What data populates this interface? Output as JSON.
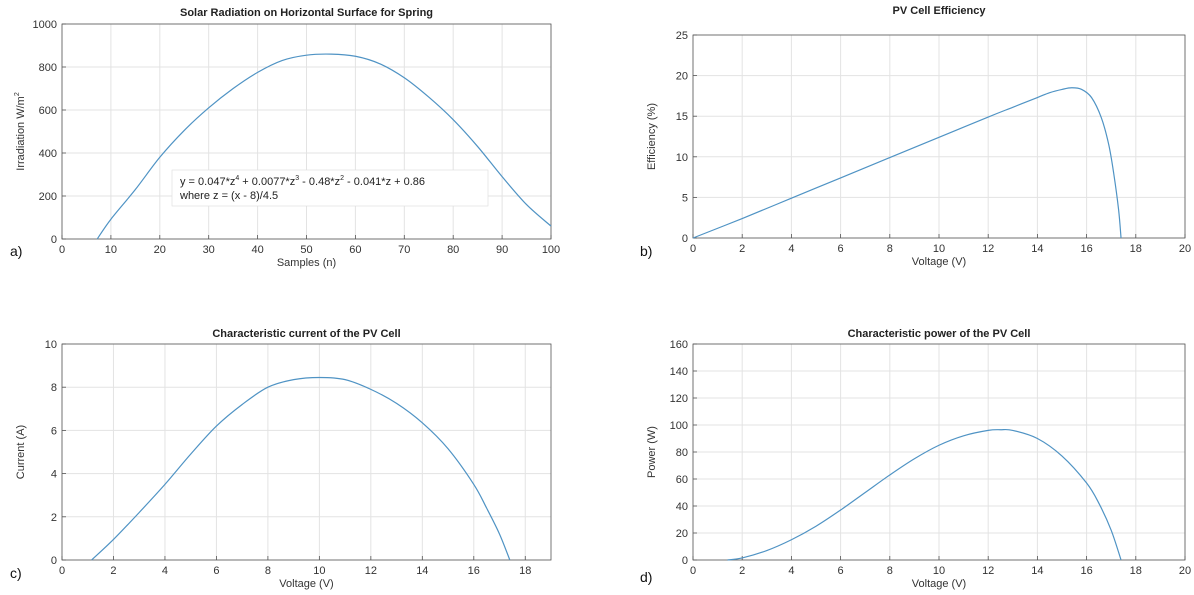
{
  "chart_data": [
    {
      "type": "line",
      "panel_label": "a)",
      "title": "Solar Radiation on Horizontal Surface for Spring",
      "xlabel": "Samples (n)",
      "ylabel": "Irradiation W/m",
      "ylabel_sup": "2",
      "xlim": [
        0,
        100
      ],
      "ylim": [
        0,
        1000
      ],
      "xticks": [
        0,
        10,
        20,
        30,
        40,
        50,
        60,
        70,
        80,
        90,
        100
      ],
      "yticks": [
        0,
        200,
        400,
        600,
        800,
        1000
      ],
      "grid": true,
      "color": "#4f93c4",
      "x": [
        7.2,
        10,
        15,
        20,
        25,
        30,
        35,
        40,
        45,
        50,
        55,
        60,
        65,
        70,
        75,
        80,
        85,
        90,
        95,
        100
      ],
      "y": [
        0,
        92,
        230,
        380,
        505,
        610,
        700,
        775,
        830,
        855,
        860,
        850,
        815,
        750,
        660,
        555,
        430,
        290,
        160,
        60
      ],
      "annotation": {
        "line1_parts": [
          "y = 0.047*z",
          "4",
          " + 0.0077*z",
          "3",
          " - 0.48*z",
          "2",
          " - 0.041*z + 0.86"
        ],
        "line2": "where z = (x - 8)/4.5"
      }
    },
    {
      "type": "line",
      "panel_label": "b)",
      "title": "PV Cell Efficiency",
      "xlabel": "Voltage (V)",
      "ylabel": "Efficiency (%)",
      "xlim": [
        0,
        20
      ],
      "ylim": [
        0,
        25
      ],
      "xticks": [
        0,
        2,
        4,
        6,
        8,
        10,
        12,
        14,
        16,
        18,
        20
      ],
      "yticks": [
        0,
        5,
        10,
        15,
        20,
        25
      ],
      "grid": true,
      "color": "#4f93c4",
      "x": [
        0,
        2,
        4,
        6,
        8,
        10,
        12,
        13,
        14,
        14.5,
        15,
        15.4,
        15.8,
        16.2,
        16.6,
        16.9,
        17.1,
        17.3,
        17.4
      ],
      "y": [
        0,
        2.4,
        4.9,
        7.4,
        9.9,
        12.4,
        14.9,
        16.1,
        17.3,
        17.9,
        18.3,
        18.5,
        18.3,
        17.3,
        14.8,
        11.5,
        8,
        3.5,
        0
      ]
    },
    {
      "type": "line",
      "panel_label": "c)",
      "title": "Characteristic current of the PV Cell",
      "xlabel": "Voltage (V)",
      "ylabel": "Current (A)",
      "xlim": [
        0,
        19
      ],
      "ylim": [
        0,
        10
      ],
      "xticks": [
        0,
        2,
        4,
        6,
        8,
        10,
        12,
        14,
        16,
        18
      ],
      "yticks": [
        0,
        2,
        4,
        6,
        8,
        10
      ],
      "grid": true,
      "color": "#4f93c4",
      "x": [
        1.15,
        2,
        3,
        4,
        5,
        6,
        7,
        8,
        9,
        10,
        11,
        12,
        13,
        14,
        15,
        16,
        16.5,
        17,
        17.4
      ],
      "y": [
        0,
        0.95,
        2.2,
        3.5,
        4.9,
        6.2,
        7.2,
        8,
        8.35,
        8.45,
        8.35,
        7.9,
        7.25,
        6.35,
        5.15,
        3.5,
        2.4,
        1.2,
        0
      ]
    },
    {
      "type": "line",
      "panel_label": "d)",
      "title": "Characteristic power of the PV Cell",
      "xlabel": "Voltage (V)",
      "ylabel": "Power (W)",
      "xlim": [
        0,
        20
      ],
      "ylim": [
        0,
        160
      ],
      "xticks": [
        0,
        2,
        4,
        6,
        8,
        10,
        12,
        14,
        16,
        18,
        20
      ],
      "yticks": [
        0,
        20,
        40,
        60,
        80,
        100,
        120,
        140,
        160
      ],
      "grid": true,
      "color": "#4f93c4",
      "x": [
        1.4,
        2,
        3,
        4,
        5,
        6,
        7,
        8,
        9,
        10,
        11,
        12,
        12.5,
        13,
        14,
        15,
        16,
        16.5,
        17,
        17.4
      ],
      "y": [
        0,
        1.5,
        7,
        15,
        25,
        37,
        50,
        63,
        75,
        85,
        92,
        96,
        96.5,
        96,
        90,
        77,
        57,
        42,
        22,
        0
      ]
    }
  ]
}
